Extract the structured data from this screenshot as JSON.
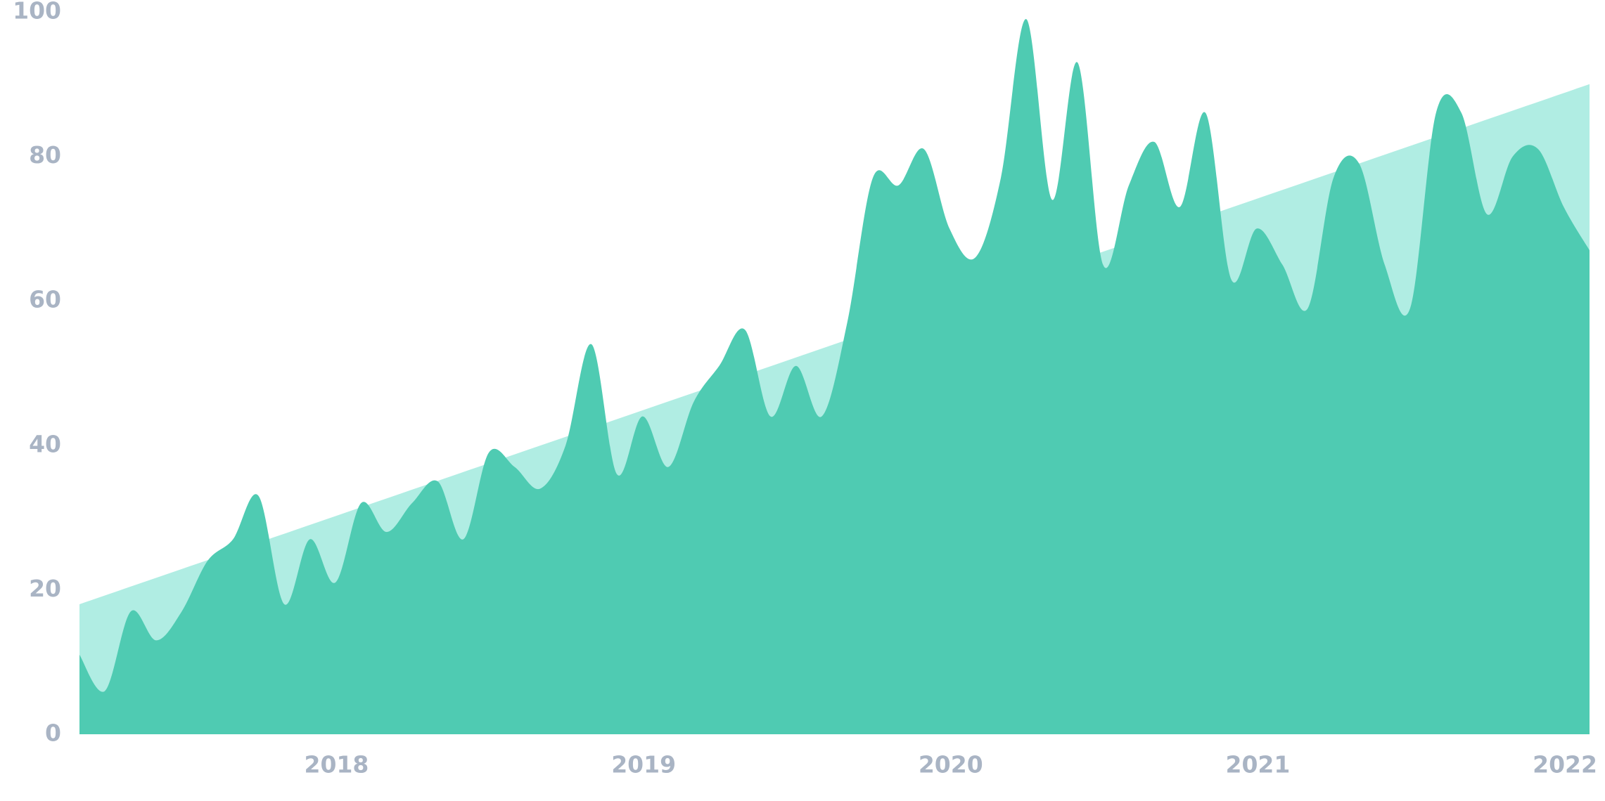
{
  "chart_data": {
    "type": "area",
    "x": [
      2017.163,
      2017.246,
      2017.33,
      2017.413,
      2017.496,
      2017.58,
      2017.663,
      2017.746,
      2017.83,
      2017.913,
      2017.996,
      2018.08,
      2018.163,
      2018.246,
      2018.33,
      2018.413,
      2018.496,
      2018.58,
      2018.663,
      2018.746,
      2018.83,
      2018.913,
      2018.996,
      2019.08,
      2019.163,
      2019.246,
      2019.33,
      2019.413,
      2019.496,
      2019.58,
      2019.663,
      2019.746,
      2019.83,
      2019.913,
      2019.996,
      2020.08,
      2020.163,
      2020.246,
      2020.33,
      2020.413,
      2020.496,
      2020.58,
      2020.663,
      2020.746,
      2020.83,
      2020.913,
      2020.996,
      2021.08,
      2021.163,
      2021.246,
      2021.33,
      2021.413,
      2021.496,
      2021.58,
      2021.663,
      2021.746,
      2021.83,
      2021.913,
      2021.996,
      2022.08
    ],
    "series": [
      {
        "color": "#b0ede3",
        "x": [
          2017.163,
          2022.08
        ],
        "values": [
          18,
          90
        ]
      },
      {
        "color": "#4fcbb2",
        "values": [
          11,
          6,
          17,
          13,
          17,
          24,
          27,
          33,
          18,
          27,
          21,
          32,
          28,
          32,
          35,
          27,
          39,
          37,
          34,
          40,
          54,
          36,
          44,
          37,
          46,
          51,
          56,
          44,
          51,
          44,
          57,
          77,
          76,
          81,
          70,
          66,
          77,
          99,
          74,
          93,
          65,
          76,
          82,
          73,
          86,
          63,
          70,
          65,
          59,
          77,
          79,
          65,
          59,
          86,
          86,
          72,
          80,
          81,
          73,
          67
        ]
      }
    ],
    "xlim": [
      2017.163,
      2022.08
    ],
    "xticks": [
      2018,
      2019,
      2020,
      2021,
      2022
    ],
    "ylim": [
      0,
      100
    ],
    "yticks": [
      0,
      20,
      40,
      60,
      80,
      100
    ],
    "grid": false
  }
}
